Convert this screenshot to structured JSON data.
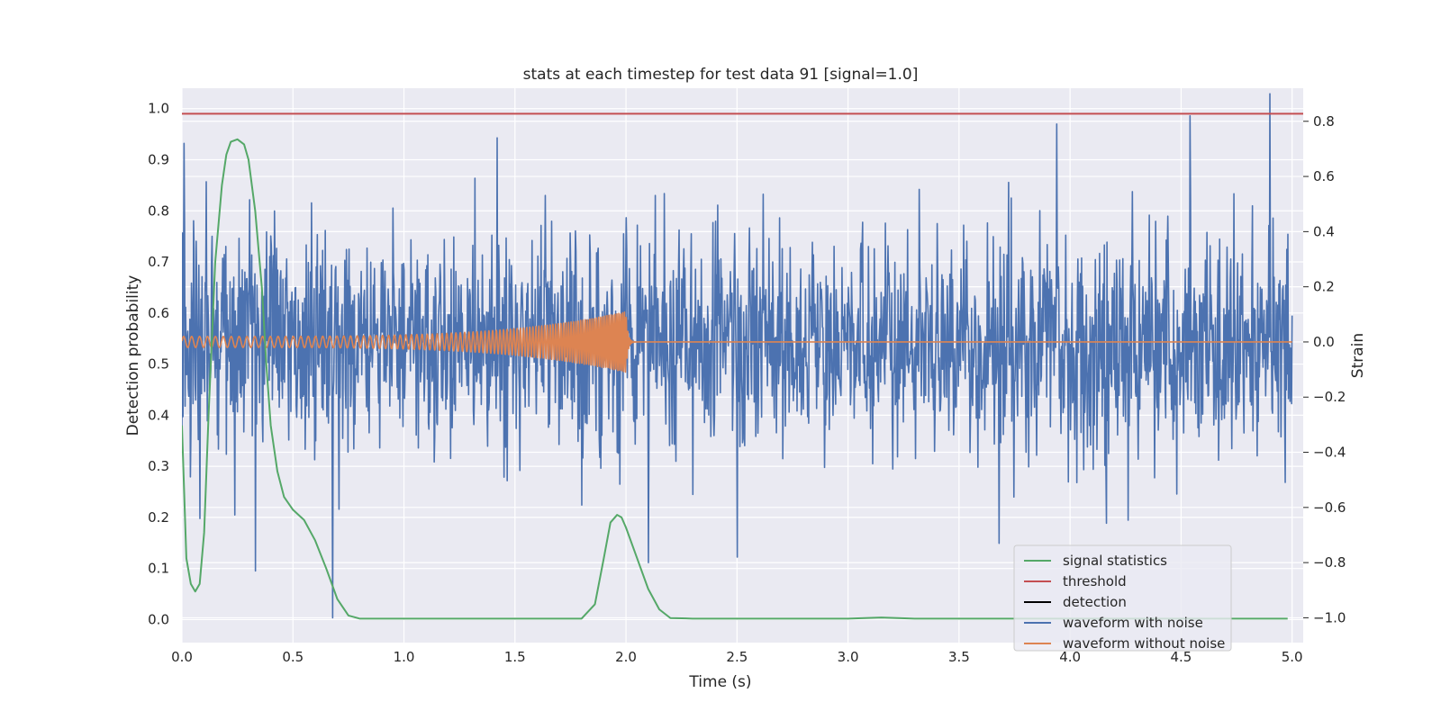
{
  "chart_data": {
    "type": "line",
    "title": "stats at each timestep for test data 91 [signal=1.0]",
    "xlabel": "Time (s)",
    "ylabel": "Detection probability",
    "y2label": "Strain",
    "xlim": [
      0.0,
      5.05
    ],
    "ylim": [
      -0.045,
      1.04
    ],
    "y2lim": [
      -1.09,
      0.92
    ],
    "xticks": [
      "0.0",
      "0.5",
      "1.0",
      "1.5",
      "2.0",
      "2.5",
      "3.0",
      "3.5",
      "4.0",
      "4.5",
      "5.0"
    ],
    "yticks": [
      "0.0",
      "0.1",
      "0.2",
      "0.3",
      "0.4",
      "0.5",
      "0.6",
      "0.7",
      "0.8",
      "0.9",
      "1.0"
    ],
    "y2ticks": [
      "−1.0",
      "−0.8",
      "−0.6",
      "−0.4",
      "−0.2",
      "0.0",
      "0.2",
      "0.4",
      "0.6",
      "0.8"
    ],
    "grid": true,
    "legend_position": "lower-right",
    "colors": {
      "signal": "#55a868",
      "threshold": "#c44e52",
      "detection": "#000000",
      "noisy": "#4c72b0",
      "clean": "#dd8452",
      "background": "#eaeaf2",
      "grid": "#ffffff"
    },
    "series": [
      {
        "name": "signal statistics",
        "axis": "left",
        "x": [
          0.0,
          0.02,
          0.04,
          0.06,
          0.08,
          0.1,
          0.12,
          0.15,
          0.18,
          0.2,
          0.22,
          0.25,
          0.28,
          0.3,
          0.33,
          0.36,
          0.38,
          0.4,
          0.43,
          0.46,
          0.5,
          0.55,
          0.6,
          0.65,
          0.7,
          0.75,
          0.8,
          1.0,
          1.5,
          1.8,
          1.86,
          1.9,
          1.93,
          1.96,
          1.98,
          2.0,
          2.05,
          2.1,
          2.15,
          2.2,
          2.3,
          3.0,
          3.15,
          3.3,
          4.0,
          4.5,
          4.98
        ],
        "y": [
          0.38,
          0.12,
          0.07,
          0.055,
          0.07,
          0.17,
          0.4,
          0.7,
          0.85,
          0.91,
          0.935,
          0.94,
          0.93,
          0.9,
          0.8,
          0.65,
          0.5,
          0.38,
          0.29,
          0.24,
          0.215,
          0.195,
          0.155,
          0.1,
          0.04,
          0.008,
          0.002,
          0.002,
          0.002,
          0.002,
          0.03,
          0.12,
          0.19,
          0.205,
          0.2,
          0.18,
          0.12,
          0.06,
          0.02,
          0.003,
          0.002,
          0.002,
          0.004,
          0.002,
          0.002,
          0.002,
          0.002
        ]
      },
      {
        "name": "threshold",
        "axis": "left",
        "y": 0.99
      },
      {
        "name": "detection",
        "axis": "left",
        "values": []
      },
      {
        "name": "waveform with noise",
        "axis": "right",
        "generator": "noise",
        "samples": 2100,
        "sigma": 0.2,
        "x_start": 0.0,
        "x_end": 5.0,
        "spikes": [
          {
            "x": 0.01,
            "y": 0.72
          },
          {
            "x": 0.08,
            "y": -0.64
          },
          {
            "x": 0.33,
            "y": -0.83
          },
          {
            "x": 0.68,
            "y": -1.0
          },
          {
            "x": 1.42,
            "y": 0.74
          },
          {
            "x": 2.1,
            "y": -0.8
          },
          {
            "x": 2.5,
            "y": -0.78
          },
          {
            "x": 3.68,
            "y": -0.73
          },
          {
            "x": 3.94,
            "y": 0.79
          },
          {
            "x": 4.54,
            "y": 0.82
          },
          {
            "x": 4.9,
            "y": 0.9
          }
        ]
      },
      {
        "name": "waveform without noise",
        "axis": "right",
        "generator": "chirp",
        "x_start": 0.0,
        "x_merge": 2.0,
        "x_end": 5.0,
        "amp_start": 0.02,
        "amp_merge": 0.11,
        "freq_start": 28,
        "freq_merge": 120
      }
    ]
  }
}
